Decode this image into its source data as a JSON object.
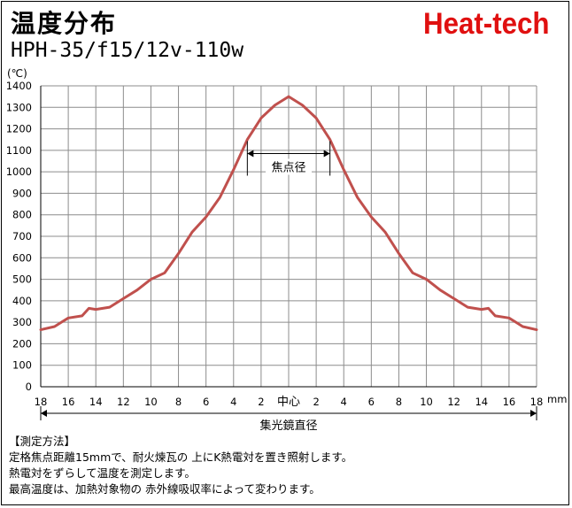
{
  "header": {
    "title": "温度分布",
    "subtitle": "HPH-35/f15/12v-110w",
    "brand": "Heat-tech"
  },
  "chart_data": {
    "type": "line",
    "ylabel": "(℃)",
    "xunit": "mm",
    "ylim": [
      0,
      1400
    ],
    "yticks": [
      0,
      100,
      200,
      300,
      400,
      500,
      600,
      700,
      800,
      900,
      1000,
      1100,
      1200,
      1300,
      1400
    ],
    "xlim": [
      -18,
      18
    ],
    "xticks": [
      -18,
      -16,
      -14,
      -12,
      -10,
      -8,
      -6,
      -4,
      -2,
      0,
      2,
      4,
      6,
      8,
      10,
      12,
      14,
      16,
      18
    ],
    "xtick_labels": [
      "18",
      "16",
      "14",
      "12",
      "10",
      "8",
      "6",
      "4",
      "2",
      "中心",
      "2",
      "4",
      "6",
      "8",
      "10",
      "12",
      "14",
      "16",
      "18"
    ],
    "grid": true,
    "series": [
      {
        "color": "#c0504d",
        "x": [
          -18,
          -17,
          -16.5,
          -16,
          -15,
          -14.5,
          -14,
          -13,
          -12,
          -11,
          -10,
          -9,
          -8,
          -7,
          -6,
          -5,
          -4,
          -3,
          -2,
          -1,
          0,
          1,
          2,
          3,
          4,
          5,
          6,
          7,
          8,
          9,
          10,
          11,
          12,
          13,
          14,
          14.5,
          15,
          16,
          16.5,
          17,
          18
        ],
        "y": [
          265,
          280,
          300,
          320,
          330,
          365,
          360,
          370,
          410,
          450,
          500,
          530,
          620,
          720,
          790,
          880,
          1010,
          1150,
          1250,
          1310,
          1350,
          1310,
          1250,
          1150,
          1010,
          880,
          790,
          720,
          620,
          530,
          500,
          450,
          410,
          370,
          360,
          365,
          330,
          320,
          300,
          280,
          265
        ]
      }
    ],
    "annotations": {
      "focus_label": "焦点径",
      "focus_range": [
        -3,
        3
      ],
      "focus_y": 1085,
      "diameter_label": "集光鏡直径",
      "diameter_range": [
        -18,
        18
      ]
    }
  },
  "notes": {
    "heading": "【測定方法】",
    "lines": [
      "定格焦点距離15mmで、耐火煉瓦の 上にK熱電対を置き照射します。",
      "熱電対をずらして温度を測定します。",
      "最高温度は、加熱対象物の 赤外線吸収率によって変わります。"
    ]
  }
}
